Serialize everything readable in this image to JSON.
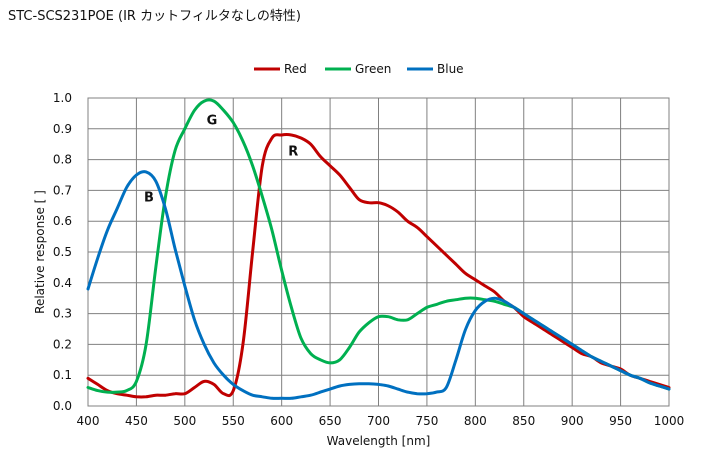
{
  "page": {
    "title": "STC-SCS231POE (IR カットフィルタなしの特性)"
  },
  "chart_data": {
    "type": "line",
    "xlabel": "Wavelength [nm]",
    "ylabel": "Relative response [ ]",
    "xlim": [
      400,
      1000
    ],
    "ylim": [
      0,
      1.0
    ],
    "xticks": [
      "400",
      "450",
      "500",
      "550",
      "600",
      "650",
      "700",
      "750",
      "800",
      "850",
      "900",
      "950",
      "1000"
    ],
    "yticks": [
      "0.0",
      "0.1",
      "0.2",
      "0.3",
      "0.4",
      "0.5",
      "0.6",
      "0.7",
      "0.8",
      "0.9",
      "1.0"
    ],
    "grid": true,
    "legend_position": "top",
    "series": [
      {
        "name": "Red",
        "color": "#c00000",
        "x": [
          400,
          410,
          420,
          430,
          440,
          450,
          460,
          470,
          480,
          490,
          500,
          510,
          520,
          530,
          540,
          550,
          560,
          570,
          580,
          590,
          600,
          610,
          620,
          630,
          640,
          650,
          660,
          670,
          680,
          690,
          700,
          710,
          720,
          730,
          740,
          750,
          760,
          770,
          780,
          790,
          800,
          810,
          820,
          830,
          840,
          850,
          860,
          870,
          880,
          890,
          900,
          910,
          920,
          930,
          940,
          950,
          960,
          970,
          980,
          990,
          1000
        ],
        "y": [
          0.09,
          0.07,
          0.05,
          0.04,
          0.035,
          0.03,
          0.03,
          0.035,
          0.035,
          0.04,
          0.04,
          0.06,
          0.08,
          0.07,
          0.04,
          0.05,
          0.2,
          0.5,
          0.78,
          0.87,
          0.88,
          0.88,
          0.87,
          0.85,
          0.81,
          0.78,
          0.75,
          0.71,
          0.67,
          0.66,
          0.66,
          0.65,
          0.63,
          0.6,
          0.58,
          0.55,
          0.52,
          0.49,
          0.46,
          0.43,
          0.41,
          0.39,
          0.37,
          0.34,
          0.32,
          0.29,
          0.27,
          0.25,
          0.23,
          0.21,
          0.19,
          0.17,
          0.16,
          0.14,
          0.13,
          0.12,
          0.1,
          0.09,
          0.08,
          0.07,
          0.06
        ]
      },
      {
        "name": "Green",
        "color": "#00b050",
        "x": [
          400,
          410,
          420,
          430,
          440,
          450,
          460,
          470,
          480,
          490,
          500,
          510,
          520,
          530,
          540,
          550,
          560,
          570,
          580,
          590,
          600,
          610,
          620,
          630,
          640,
          650,
          660,
          670,
          680,
          690,
          700,
          710,
          720,
          730,
          740,
          750,
          760,
          770,
          780,
          790,
          800,
          810,
          820,
          830,
          840,
          850,
          860,
          870,
          880,
          890,
          900,
          910,
          920,
          930,
          940,
          950,
          960,
          970,
          980,
          990,
          1000
        ],
        "y": [
          0.06,
          0.05,
          0.045,
          0.045,
          0.05,
          0.08,
          0.2,
          0.45,
          0.68,
          0.83,
          0.9,
          0.96,
          0.99,
          0.99,
          0.96,
          0.92,
          0.86,
          0.78,
          0.68,
          0.57,
          0.44,
          0.32,
          0.22,
          0.17,
          0.15,
          0.14,
          0.15,
          0.19,
          0.24,
          0.27,
          0.29,
          0.29,
          0.28,
          0.28,
          0.3,
          0.32,
          0.33,
          0.34,
          0.345,
          0.35,
          0.35,
          0.345,
          0.34,
          0.33,
          0.32,
          0.3,
          0.28,
          0.26,
          0.24,
          0.22,
          0.2,
          0.18,
          0.16,
          0.145,
          0.13,
          0.115,
          0.1,
          0.09,
          0.075,
          0.065,
          0.055
        ]
      },
      {
        "name": "Blue",
        "color": "#0070c0",
        "x": [
          400,
          410,
          420,
          430,
          440,
          450,
          460,
          470,
          480,
          490,
          500,
          510,
          520,
          530,
          540,
          550,
          560,
          570,
          580,
          590,
          600,
          610,
          620,
          630,
          640,
          650,
          660,
          670,
          680,
          690,
          700,
          710,
          720,
          730,
          740,
          750,
          760,
          770,
          780,
          790,
          800,
          810,
          820,
          830,
          840,
          850,
          860,
          870,
          880,
          890,
          900,
          910,
          920,
          930,
          940,
          950,
          960,
          970,
          980,
          990,
          1000
        ],
        "y": [
          0.38,
          0.48,
          0.57,
          0.64,
          0.71,
          0.75,
          0.76,
          0.73,
          0.64,
          0.51,
          0.39,
          0.28,
          0.2,
          0.14,
          0.1,
          0.07,
          0.05,
          0.035,
          0.03,
          0.025,
          0.025,
          0.025,
          0.03,
          0.035,
          0.045,
          0.055,
          0.065,
          0.07,
          0.072,
          0.072,
          0.07,
          0.065,
          0.055,
          0.045,
          0.04,
          0.04,
          0.045,
          0.06,
          0.15,
          0.25,
          0.31,
          0.34,
          0.35,
          0.34,
          0.32,
          0.3,
          0.28,
          0.26,
          0.24,
          0.22,
          0.2,
          0.18,
          0.16,
          0.145,
          0.13,
          0.115,
          0.1,
          0.09,
          0.075,
          0.065,
          0.055
        ]
      }
    ],
    "annotations": [
      {
        "text": "G",
        "x": 528,
        "y": 0.93
      },
      {
        "text": "R",
        "x": 612,
        "y": 0.83
      },
      {
        "text": "B",
        "x": 463,
        "y": 0.68
      }
    ]
  }
}
